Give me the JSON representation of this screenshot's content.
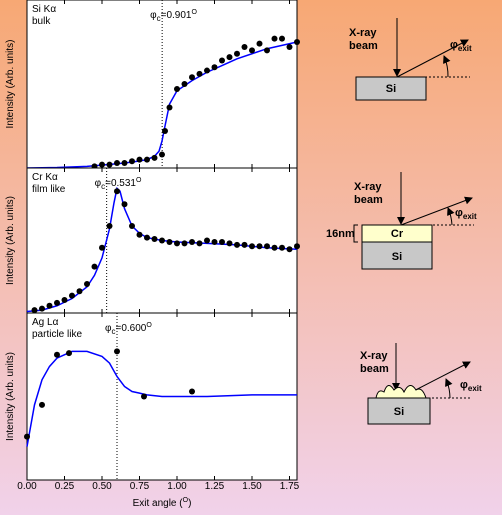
{
  "chart_data": [
    {
      "type": "scatter",
      "panel_label": "Si Kα",
      "panel_sublabel": "bulk",
      "ylabel": "Intensity (Arb. units)",
      "critical_angle": {
        "symbol": "φ",
        "sub": "c",
        "value": 0.901,
        "label": "=0.901",
        "sup": "O"
      },
      "xlim": [
        0,
        1.8
      ],
      "ylim": [
        0,
        1
      ],
      "points": {
        "x": [
          0.45,
          0.5,
          0.55,
          0.6,
          0.65,
          0.7,
          0.75,
          0.8,
          0.85,
          0.9,
          0.92,
          0.95,
          1.0,
          1.05,
          1.1,
          1.15,
          1.2,
          1.25,
          1.3,
          1.35,
          1.4,
          1.45,
          1.5,
          1.55,
          1.6,
          1.65,
          1.7,
          1.75,
          1.8
        ],
        "y": [
          0.01,
          0.02,
          0.02,
          0.03,
          0.03,
          0.04,
          0.05,
          0.05,
          0.06,
          0.08,
          0.22,
          0.36,
          0.47,
          0.5,
          0.54,
          0.56,
          0.58,
          0.6,
          0.64,
          0.66,
          0.68,
          0.72,
          0.7,
          0.74,
          0.7,
          0.77,
          0.77,
          0.72,
          0.75
        ]
      },
      "fit": {
        "x": [
          0,
          0.2,
          0.4,
          0.6,
          0.7,
          0.8,
          0.85,
          0.88,
          0.9,
          0.92,
          0.95,
          1.0,
          1.1,
          1.2,
          1.3,
          1.4,
          1.5,
          1.6,
          1.7,
          1.8
        ],
        "y": [
          0.0,
          0.003,
          0.01,
          0.025,
          0.035,
          0.05,
          0.07,
          0.1,
          0.16,
          0.25,
          0.38,
          0.46,
          0.52,
          0.57,
          0.61,
          0.65,
          0.68,
          0.71,
          0.73,
          0.75
        ]
      }
    },
    {
      "type": "scatter",
      "panel_label": "Cr Kα",
      "panel_sublabel": "film like",
      "ylabel": "Intensity (Arb. units)",
      "critical_angle": {
        "symbol": "φ",
        "sub": "c",
        "value": 0.531,
        "label": "=0.531",
        "sup": "O"
      },
      "xlim": [
        0,
        1.8
      ],
      "ylim": [
        0,
        1
      ],
      "points": {
        "x": [
          0.05,
          0.1,
          0.15,
          0.2,
          0.25,
          0.3,
          0.35,
          0.4,
          0.45,
          0.5,
          0.55,
          0.6,
          0.65,
          0.7,
          0.75,
          0.8,
          0.85,
          0.9,
          0.95,
          1.0,
          1.05,
          1.1,
          1.15,
          1.2,
          1.25,
          1.3,
          1.35,
          1.4,
          1.45,
          1.5,
          1.55,
          1.6,
          1.65,
          1.7,
          1.75,
          1.8
        ],
        "y": [
          0.02,
          0.03,
          0.05,
          0.07,
          0.09,
          0.12,
          0.15,
          0.2,
          0.32,
          0.45,
          0.6,
          0.84,
          0.75,
          0.6,
          0.54,
          0.52,
          0.51,
          0.5,
          0.49,
          0.48,
          0.48,
          0.49,
          0.48,
          0.5,
          0.49,
          0.49,
          0.48,
          0.47,
          0.47,
          0.46,
          0.46,
          0.46,
          0.45,
          0.45,
          0.44,
          0.46
        ]
      },
      "fit": {
        "x": [
          0,
          0.1,
          0.2,
          0.3,
          0.4,
          0.45,
          0.5,
          0.55,
          0.58,
          0.6,
          0.62,
          0.65,
          0.7,
          0.75,
          0.8,
          0.9,
          1.0,
          1.2,
          1.4,
          1.6,
          1.8
        ],
        "y": [
          0.01,
          0.02,
          0.05,
          0.1,
          0.18,
          0.26,
          0.38,
          0.58,
          0.76,
          0.86,
          0.84,
          0.72,
          0.6,
          0.55,
          0.52,
          0.5,
          0.49,
          0.48,
          0.47,
          0.45,
          0.44
        ]
      }
    },
    {
      "type": "scatter",
      "panel_label": "Ag Lα",
      "panel_sublabel": "particle like",
      "ylabel": "Intensity (Arb. units)",
      "critical_angle": {
        "symbol": "φ",
        "sub": "c",
        "value": 0.6,
        "label": "=0.600",
        "sup": "O"
      },
      "xlim": [
        0,
        1.8
      ],
      "ylim": [
        0,
        1
      ],
      "points": {
        "x": [
          0.0,
          0.1,
          0.2,
          0.28,
          0.6,
          0.78,
          1.1
        ],
        "y": [
          0.26,
          0.45,
          0.75,
          0.76,
          0.77,
          0.5,
          0.53
        ]
      },
      "fit": {
        "x": [
          0,
          0.05,
          0.1,
          0.15,
          0.2,
          0.3,
          0.4,
          0.5,
          0.55,
          0.6,
          0.65,
          0.7,
          0.75,
          0.8,
          0.9,
          1.0,
          1.2,
          1.5,
          1.8
        ],
        "y": [
          0.2,
          0.45,
          0.6,
          0.68,
          0.73,
          0.77,
          0.77,
          0.74,
          0.7,
          0.62,
          0.56,
          0.53,
          0.52,
          0.51,
          0.5,
          0.5,
          0.5,
          0.51,
          0.51
        ]
      },
      "xlabel": {
        "text": "Exit angle (",
        "sup": "O",
        "close": ")"
      },
      "xticks": [
        {
          "value": 0,
          "label": "0.00"
        },
        {
          "value": 0.25,
          "label": "0.25"
        },
        {
          "value": 0.5,
          "label": "0.50"
        },
        {
          "value": 0.75,
          "label": "0.75"
        },
        {
          "value": 1.0,
          "label": "1.00"
        },
        {
          "value": 1.25,
          "label": "1.25"
        },
        {
          "value": 1.5,
          "label": "1.50"
        },
        {
          "value": 1.75,
          "label": "1.75"
        }
      ]
    }
  ],
  "diagrams": [
    {
      "beam": [
        "X-ray",
        "beam"
      ],
      "angle": {
        "symbol": "φ",
        "sub": "exit"
      },
      "substrate": "Si"
    },
    {
      "beam": [
        "X-ray",
        "beam"
      ],
      "angle": {
        "symbol": "φ",
        "sub": "exit"
      },
      "film": "Cr",
      "thickness": "16nm",
      "substrate": "Si"
    },
    {
      "beam": [
        "X-ray",
        "beam"
      ],
      "angle": {
        "symbol": "φ",
        "sub": "exit"
      },
      "substrate": "Si"
    }
  ]
}
